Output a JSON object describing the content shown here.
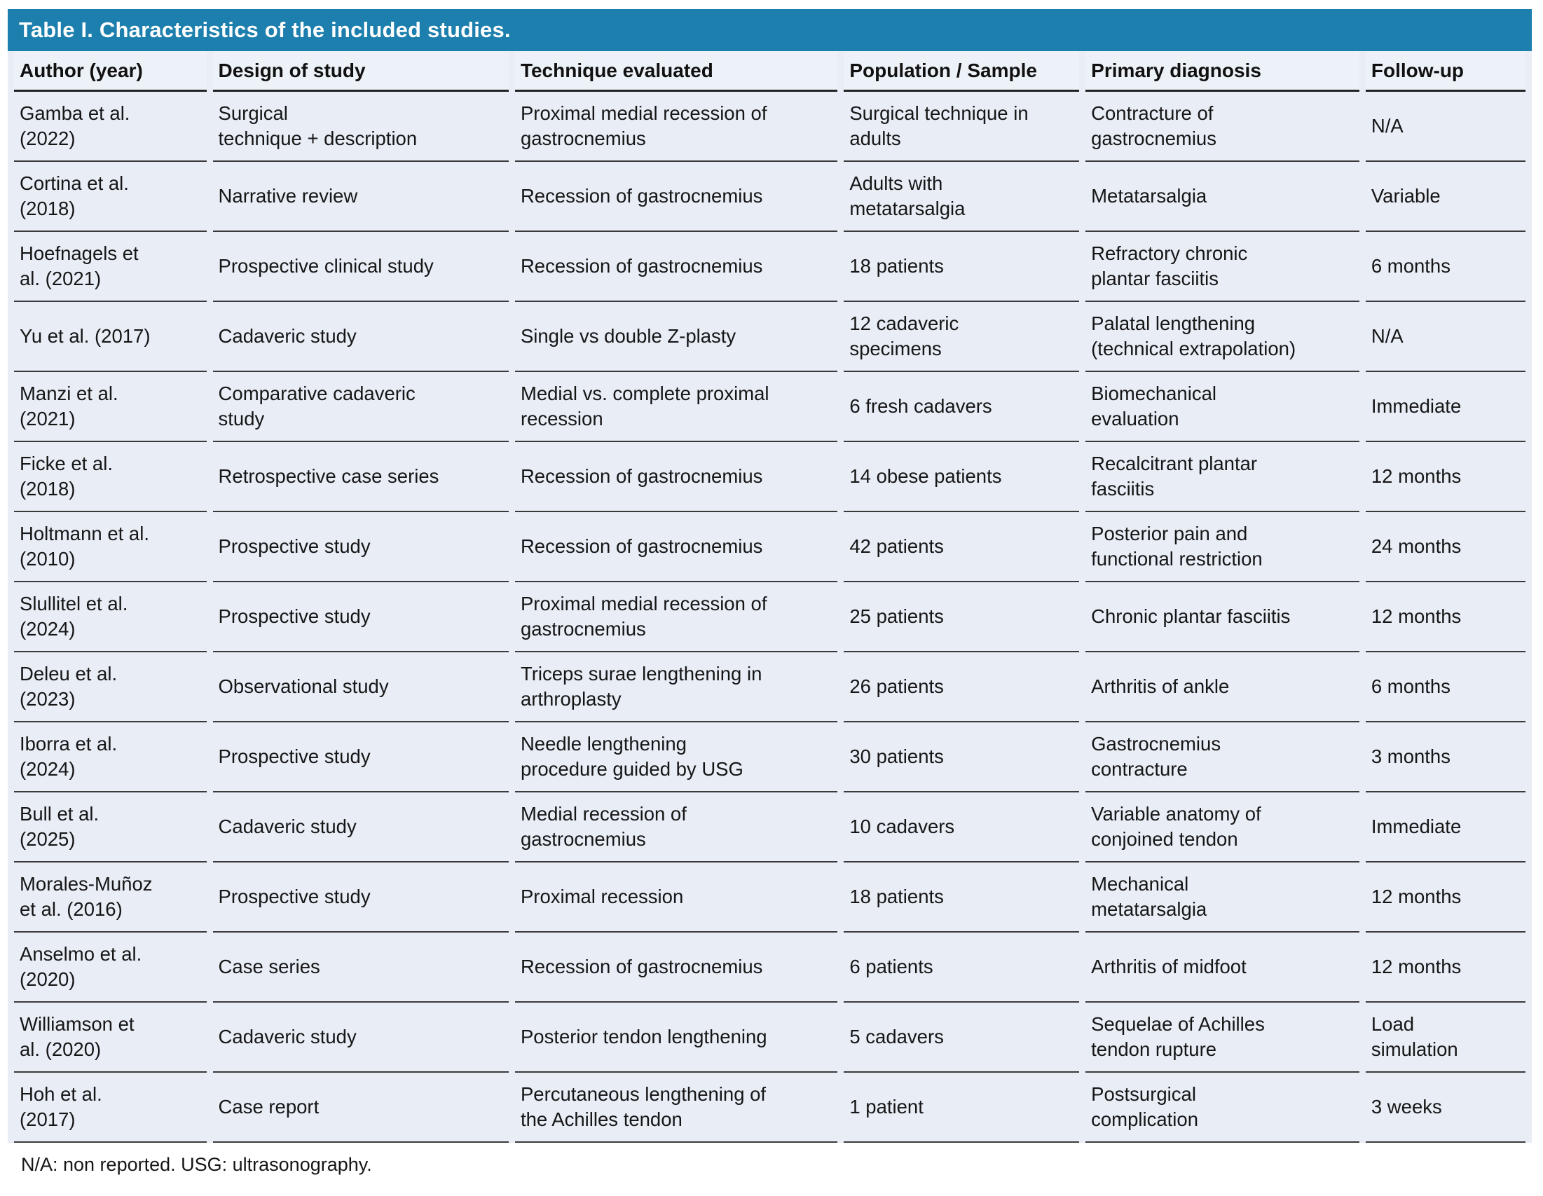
{
  "table": {
    "title": "Table I. Characteristics of the included studies.",
    "columns": [
      "Author (year)",
      "Design of study",
      "Technique evaluated",
      "Population / Sample",
      "Primary diagnosis",
      "Follow-up"
    ],
    "rows": [
      [
        "Gamba et al.\n(2022)",
        "Surgical\ntechnique + description",
        "Proximal medial recession of\ngastrocnemius",
        "Surgical technique in\nadults",
        "Contracture of\ngastrocnemius",
        "N/A"
      ],
      [
        "Cortina et al.\n(2018)",
        "Narrative review",
        "Recession of gastrocnemius",
        "Adults with\nmetatarsalgia",
        "Metatarsalgia",
        "Variable"
      ],
      [
        "Hoefnagels et\nal. (2021)",
        "Prospective clinical study",
        "Recession of gastrocnemius",
        "18 patients",
        "Refractory chronic\nplantar fasciitis",
        "6 months"
      ],
      [
        "Yu et al. (2017)",
        "Cadaveric study",
        "Single vs double Z-plasty",
        "12 cadaveric\nspecimens",
        "Palatal lengthening\n(technical extrapolation)",
        "N/A"
      ],
      [
        "Manzi et al.\n(2021)",
        "Comparative cadaveric\nstudy",
        "Medial vs. complete proximal\nrecession",
        "6 fresh cadavers",
        "Biomechanical\nevaluation",
        "Immediate"
      ],
      [
        "Ficke et al.\n(2018)",
        "Retrospective case series",
        "Recession of gastrocnemius",
        "14 obese patients",
        "Recalcitrant plantar\nfasciitis",
        "12 months"
      ],
      [
        "Holtmann et al.\n(2010)",
        "Prospective study",
        "Recession of gastrocnemius",
        "42 patients",
        "Posterior pain and\nfunctional restriction",
        "24 months"
      ],
      [
        "Slullitel et al.\n(2024)",
        "Prospective study",
        "Proximal medial recession of\ngastrocnemius",
        "25 patients",
        "Chronic plantar fasciitis",
        "12 months"
      ],
      [
        "Deleu et al.\n(2023)",
        "Observational study",
        "Triceps surae lengthening in\narthroplasty",
        "26 patients",
        "Arthritis of ankle",
        "6 months"
      ],
      [
        "Iborra et al.\n(2024)",
        "Prospective study",
        "Needle lengthening\nprocedure guided by USG",
        "30 patients",
        "Gastrocnemius\ncontracture",
        "3 months"
      ],
      [
        "Bull et al.\n(2025)",
        "Cadaveric study",
        "Medial recession of\ngastrocnemius",
        "10 cadavers",
        "Variable anatomy of\nconjoined tendon",
        "Immediate"
      ],
      [
        "Morales-Muñoz\net al. (2016)",
        "Prospective study",
        "Proximal recession",
        "18 patients",
        "Mechanical\nmetatarsalgia",
        "12 months"
      ],
      [
        "Anselmo et al.\n(2020)",
        "Case series",
        "Recession of gastrocnemius",
        "6 patients",
        "Arthritis of midfoot",
        "12 months"
      ],
      [
        "Williamson et\nal. (2020)",
        "Cadaveric study",
        "Posterior tendon lengthening",
        "5 cadavers",
        "Sequelae of Achilles\ntendon rupture",
        "Load\nsimulation"
      ],
      [
        "Hoh et al.\n(2017)",
        "Case report",
        "Percutaneous lengthening of\nthe Achilles tendon",
        "1 patient",
        "Postsurgical\ncomplication",
        "3 weeks"
      ]
    ],
    "footnote": "N/A: non reported. USG: ultrasonography.",
    "colors": {
      "title_bar_bg": "#1d7fad",
      "title_text": "#ffffff",
      "header_bg": "#edf1f8",
      "row_bg": "#e8edf6",
      "row_border": "#3a3a3a",
      "header_border": "#242424"
    }
  }
}
